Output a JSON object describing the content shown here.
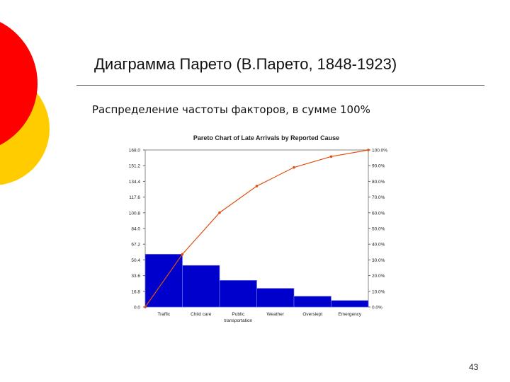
{
  "slide": {
    "title": "Диаграмма Парето (В.Парето, 1848-1923)",
    "subtitle": "Распределение частоты факторов, в сумме 100%",
    "page_number": "43"
  },
  "colors": {
    "decor_red": "#ff0000",
    "decor_yellow": "#ffcc00",
    "bar": "#0000cc",
    "line": "#e05010"
  },
  "chart_data": {
    "type": "bar",
    "title": "Pareto Chart of Late Arrivals by Reported Cause",
    "categories": [
      "Traffic",
      "Child care",
      "Public transportation",
      "Weather",
      "Overslept",
      "Emergency"
    ],
    "category_labels": [
      [
        "Traffic"
      ],
      [
        "Child care"
      ],
      [
        "Public",
        "transportation"
      ],
      [
        "Weather"
      ],
      [
        "Overslept"
      ],
      [
        "Emergency"
      ]
    ],
    "values": [
      56.5,
      44.5,
      28.5,
      20,
      11.5,
      7
    ],
    "cumulative_percent": [
      0,
      33.6,
      60.1,
      77,
      88.9,
      95.8,
      100
    ],
    "y_ticks": [
      "0.0",
      "16.8",
      "33.6",
      "50.4",
      "67.2",
      "84.0",
      "100.8",
      "117.6",
      "134.4",
      "151.2",
      "168.0"
    ],
    "y2_ticks": [
      "0.0%",
      "10.0%",
      "20.0%",
      "30.0%",
      "40.0%",
      "50.0%",
      "60.0%",
      "70.0%",
      "80.0%",
      "90.0%",
      "100.0%"
    ],
    "ylim": [
      0,
      168
    ],
    "y2lim": [
      0,
      100
    ],
    "grid": false
  }
}
